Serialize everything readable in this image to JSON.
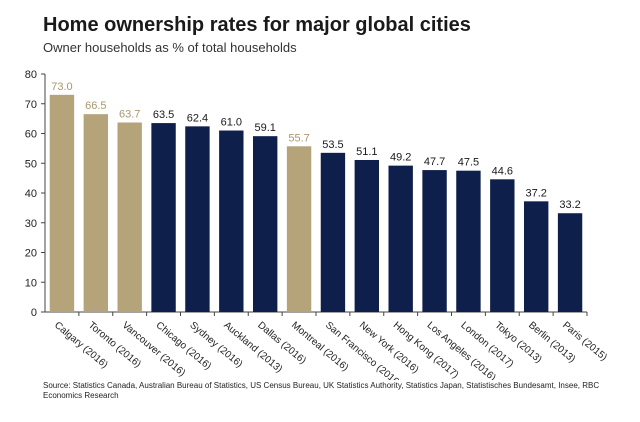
{
  "title": "Home ownership rates for major global cities",
  "subtitle": "Owner households as % of total households",
  "source": "Source:  Statistics Canada, Australian Bureau of Statistics, US Census Bureau, UK Statistics Authority, Statistics Japan, Statistisches Bundesamt, Insee,  RBC Economics  Research",
  "colors": {
    "canada": "#b5a37a",
    "other": "#0d1f4a",
    "canada_label": "#a8966d",
    "other_label": "#1a1a1a",
    "grid": "#d9d9d9",
    "axis": "#444444"
  },
  "chart_data": {
    "type": "bar",
    "title": "Home ownership rates for major global cities",
    "subtitle": "Owner households as % of total households",
    "xlabel": "",
    "ylabel": "",
    "ylim": [
      0,
      80
    ],
    "yticks": [
      0,
      10,
      20,
      30,
      40,
      50,
      60,
      70,
      80
    ],
    "grid": false,
    "categories": [
      "Calgary (2016)",
      "Toronto (2016)",
      "Vancouver (2016)",
      "Chicago (2016)",
      "Sydney (2016)",
      "Auckland (2013)",
      "Dallas (2016)",
      "Montreal (2016)",
      "San Francisco (2016)",
      "New York (2016)",
      "Hong Kong (2017)",
      "Los Angeles (2016)",
      "London (2017)",
      "Tokyo (2013)",
      "Berlin (2013)",
      "Paris (2015)"
    ],
    "values": [
      73.0,
      66.5,
      63.7,
      63.5,
      62.4,
      61.0,
      59.1,
      55.7,
      53.5,
      51.1,
      49.2,
      47.7,
      47.5,
      44.6,
      37.2,
      33.2
    ],
    "data_labels": [
      "73.0",
      "66.5",
      "63.7",
      "63.5",
      "62.4",
      "61.0",
      "59.1",
      "55.7",
      "53.5",
      "51.1",
      "49.2",
      "47.7",
      "47.5",
      "44.6",
      "37.2",
      "33.2"
    ],
    "highlight": [
      true,
      true,
      true,
      false,
      false,
      false,
      false,
      true,
      false,
      false,
      false,
      false,
      false,
      false,
      false,
      false
    ]
  }
}
